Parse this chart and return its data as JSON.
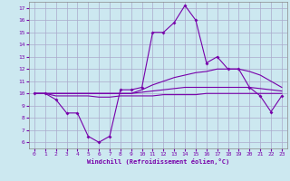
{
  "xlabel": "Windchill (Refroidissement éolien,°C)",
  "bg_color": "#cce8f0",
  "grid_color": "#aaaacc",
  "line_color": "#7700aa",
  "x_hours": [
    0,
    1,
    2,
    3,
    4,
    5,
    6,
    7,
    8,
    9,
    10,
    11,
    12,
    13,
    14,
    15,
    16,
    17,
    18,
    19,
    20,
    21,
    22,
    23
  ],
  "main_y": [
    10,
    10,
    9.5,
    8.4,
    8.4,
    6.5,
    6.0,
    6.5,
    10.3,
    10.3,
    10.5,
    15.0,
    15.0,
    15.8,
    17.2,
    16.0,
    12.5,
    13.0,
    12.0,
    12.0,
    10.5,
    9.8,
    8.5,
    9.8
  ],
  "line2_y": [
    10,
    10,
    10,
    10,
    10,
    10,
    10,
    10,
    10,
    10,
    10.3,
    10.7,
    11.0,
    11.3,
    11.5,
    11.7,
    11.8,
    12.0,
    12.0,
    12.0,
    11.8,
    11.5,
    11.0,
    10.5
  ],
  "line3_y": [
    10,
    10,
    10,
    10,
    10,
    10,
    10,
    10,
    10,
    10,
    10.1,
    10.2,
    10.3,
    10.4,
    10.5,
    10.5,
    10.5,
    10.5,
    10.5,
    10.5,
    10.5,
    10.4,
    10.3,
    10.2
  ],
  "line4_y": [
    10,
    10,
    9.8,
    9.8,
    9.8,
    9.8,
    9.7,
    9.7,
    9.8,
    9.8,
    9.8,
    9.8,
    9.9,
    9.9,
    9.9,
    9.9,
    10.0,
    10.0,
    10.0,
    10.0,
    10.0,
    10.0,
    10.0,
    10.0
  ],
  "ylim": [
    5.5,
    17.5
  ],
  "xlim": [
    -0.5,
    23.5
  ],
  "yticks": [
    6,
    7,
    8,
    9,
    10,
    11,
    12,
    13,
    14,
    15,
    16,
    17
  ],
  "xticks": [
    0,
    1,
    2,
    3,
    4,
    5,
    6,
    7,
    8,
    9,
    10,
    11,
    12,
    13,
    14,
    15,
    16,
    17,
    18,
    19,
    20,
    21,
    22,
    23
  ]
}
